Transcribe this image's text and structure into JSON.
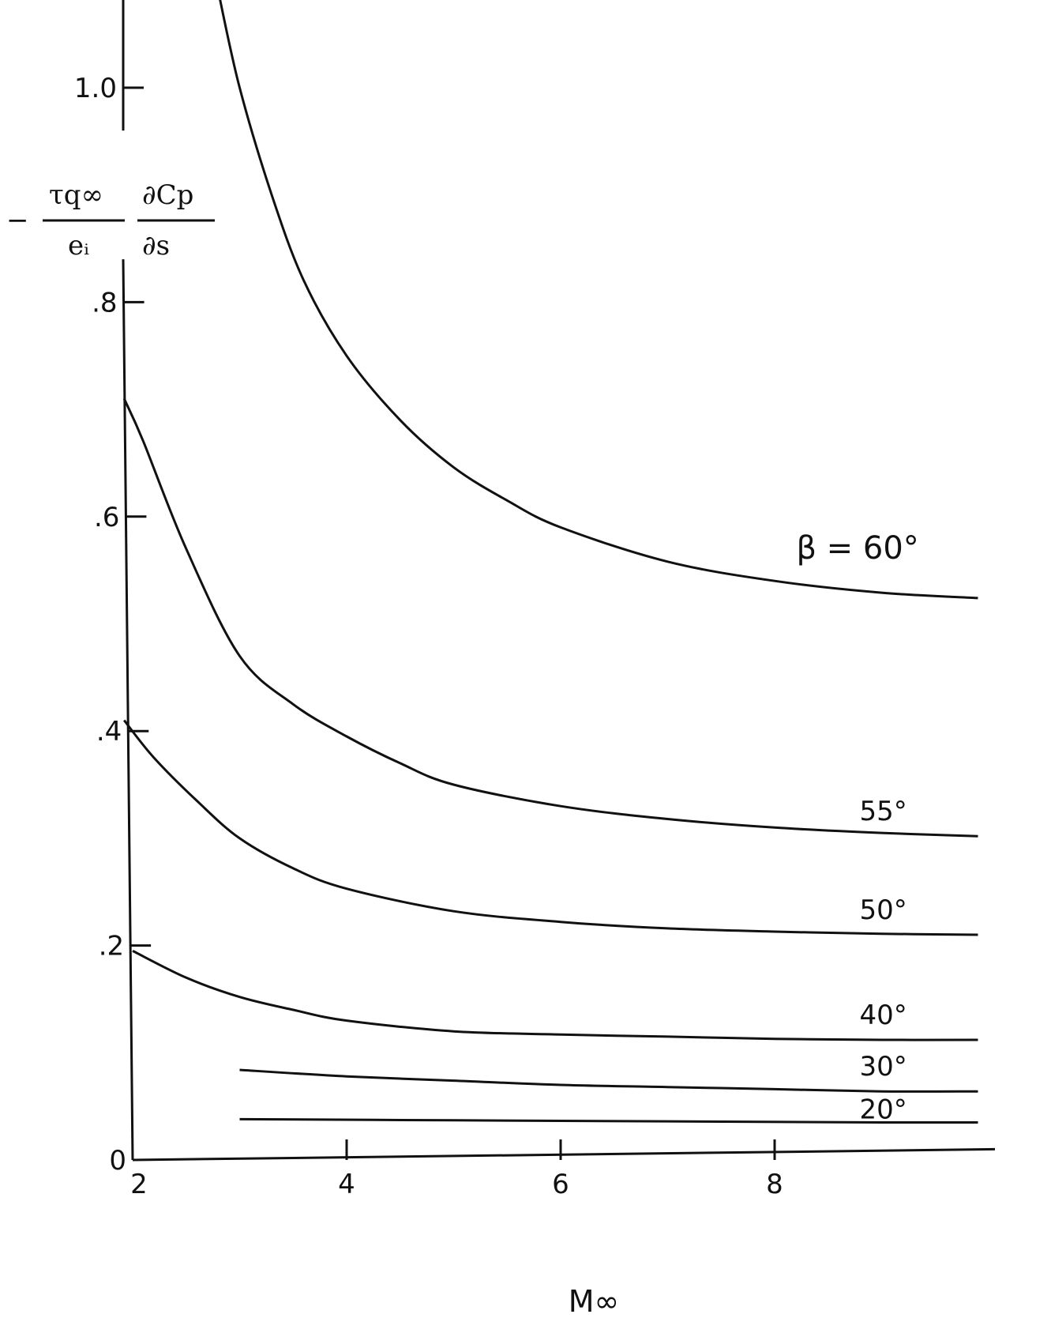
{
  "chart_data": {
    "type": "line",
    "title": "",
    "xlabel": "M∞",
    "ylabel": {
      "sign": "−",
      "numerator1": "τq∞",
      "denominator1": "eᵢ",
      "numerator2": "∂Cp",
      "denominator2": "∂s"
    },
    "xlim": [
      2,
      10
    ],
    "ylim": [
      0,
      1.1
    ],
    "x_ticks": [
      {
        "value": 2,
        "label": "2"
      },
      {
        "value": 4,
        "label": "4"
      },
      {
        "value": 6,
        "label": "6"
      },
      {
        "value": 8,
        "label": "8"
      }
    ],
    "y_ticks": [
      {
        "value": 0,
        "label": "0"
      },
      {
        "value": 0.2,
        "label": ".2"
      },
      {
        "value": 0.4,
        "label": ".4"
      },
      {
        "value": 0.6,
        "label": ".6"
      },
      {
        "value": 0.8,
        "label": ".8"
      },
      {
        "value": 1.0,
        "label": "1.0"
      }
    ],
    "grid": false,
    "legend": "none",
    "series": [
      {
        "name": "β = 60°",
        "x": [
          2.8,
          3.0,
          3.3,
          3.6,
          4.0,
          4.5,
          5.0,
          5.5,
          6.0,
          7.0,
          8.0,
          9.0,
          9.9
        ],
        "y": [
          1.09,
          1.0,
          0.9,
          0.82,
          0.75,
          0.69,
          0.646,
          0.615,
          0.59,
          0.558,
          0.54,
          0.529,
          0.524
        ]
      },
      {
        "name": "55°",
        "x": [
          1.92,
          2.1,
          2.5,
          3.0,
          3.5,
          4.0,
          4.5,
          5.0,
          6.0,
          7.0,
          8.0,
          9.0,
          9.9
        ],
        "y": [
          0.71,
          0.67,
          0.57,
          0.47,
          0.425,
          0.395,
          0.37,
          0.35,
          0.33,
          0.318,
          0.31,
          0.305,
          0.302
        ]
      },
      {
        "name": "50°",
        "x": [
          1.92,
          2.2,
          2.6,
          3.0,
          3.5,
          4.0,
          5.0,
          6.0,
          7.0,
          8.0,
          9.0,
          9.9
        ],
        "y": [
          0.41,
          0.375,
          0.335,
          0.3,
          0.272,
          0.253,
          0.232,
          0.222,
          0.216,
          0.213,
          0.211,
          0.21
        ]
      },
      {
        "name": "40°",
        "x": [
          2.0,
          2.5,
          3.0,
          3.5,
          4.0,
          5.0,
          6.0,
          7.0,
          8.0,
          9.0,
          9.9
        ],
        "y": [
          0.195,
          0.17,
          0.152,
          0.14,
          0.13,
          0.12,
          0.117,
          0.115,
          0.113,
          0.112,
          0.112
        ]
      },
      {
        "name": "30°",
        "x": [
          3.0,
          4.0,
          5.0,
          6.0,
          7.0,
          8.0,
          9.0,
          9.9
        ],
        "y": [
          0.084,
          0.078,
          0.074,
          0.07,
          0.068,
          0.066,
          0.064,
          0.064
        ]
      },
      {
        "name": "20°",
        "x": [
          3.0,
          5.0,
          7.0,
          9.0,
          9.9
        ],
        "y": [
          0.038,
          0.037,
          0.036,
          0.035,
          0.035
        ]
      }
    ],
    "colors": {
      "line": "#111111",
      "background": "#ffffff"
    }
  }
}
